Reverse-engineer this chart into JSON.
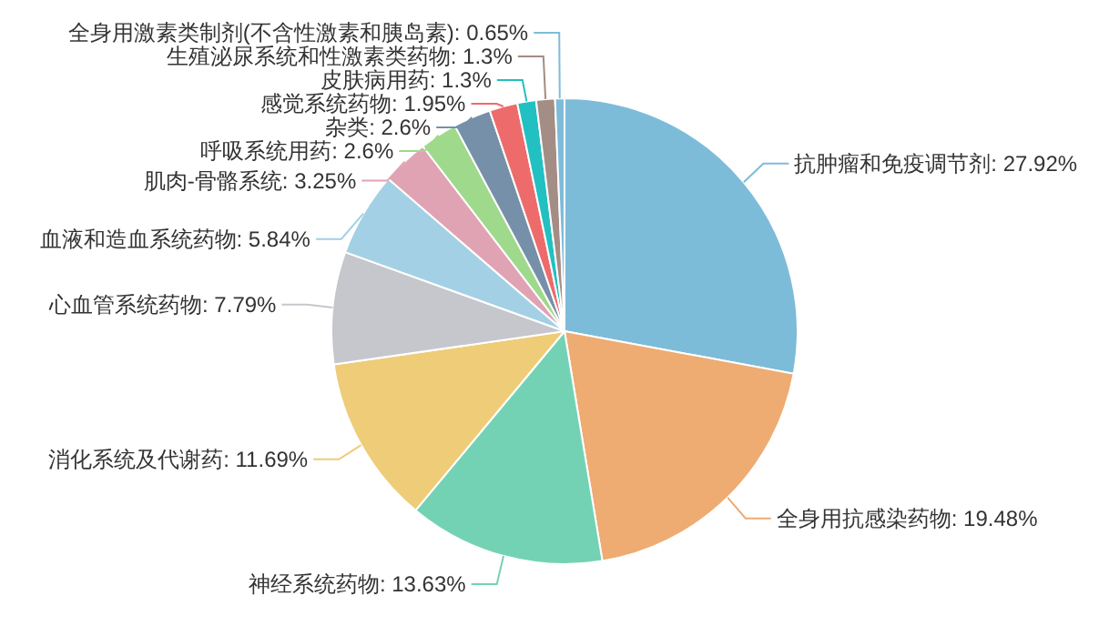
{
  "chart_data": {
    "type": "pie",
    "categories": [
      "抗肿瘤和免疫调节剂",
      "全身用抗感染药物",
      "神经系统药物",
      "消化系统及代谢药",
      "心血管系统药物",
      "血液和造血系统药物",
      "肌肉-骨骼系统",
      "呼吸系统用药",
      "杂类",
      "感觉系统药物",
      "皮肤病用药",
      "生殖泌尿系统和性激素类药物",
      "全身用激素类制剂(不含性激素和胰岛素)"
    ],
    "values": [
      27.92,
      19.48,
      13.63,
      11.69,
      7.79,
      5.84,
      3.25,
      2.6,
      2.6,
      1.95,
      1.3,
      1.3,
      0.65
    ],
    "value_labels": [
      "27.92%",
      "19.48%",
      "13.63%",
      "11.69%",
      "7.79%",
      "5.84%",
      "3.25%",
      "2.6%",
      "2.6%",
      "1.95%",
      "1.3%",
      "1.3%",
      "0.65%"
    ],
    "colors": [
      "#7dbcd9",
      "#eeab72",
      "#74d2b4",
      "#eecc78",
      "#c5c7cc",
      "#a3d0e4",
      "#e0a3b4",
      "#9fd98c",
      "#7790a9",
      "#ee6b6b",
      "#22c0c1",
      "#a38d85",
      "#7dbcd9"
    ]
  }
}
